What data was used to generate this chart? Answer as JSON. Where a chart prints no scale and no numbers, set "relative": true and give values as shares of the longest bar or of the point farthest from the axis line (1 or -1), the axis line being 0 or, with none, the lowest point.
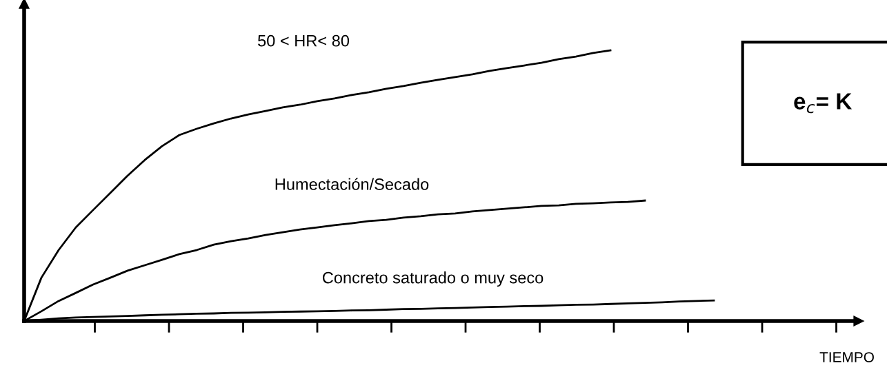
{
  "chart_data": {
    "type": "line",
    "relative": true,
    "categories": [
      null,
      null,
      null,
      null,
      null,
      null,
      null,
      null,
      null,
      null,
      null,
      null,
      null,
      null,
      null,
      null,
      null,
      null,
      null,
      null,
      null,
      null,
      null,
      null,
      null,
      null,
      null,
      null,
      null,
      null,
      null,
      null,
      null,
      null,
      null,
      null,
      null,
      null,
      null,
      null,
      null
    ],
    "series": [
      {
        "name": "50 < HR< 80",
        "color": "#000000",
        "values": [
          0,
          0.16,
          0.262,
          0.346,
          0.41,
          0.473,
          0.537,
          0.595,
          0.646,
          0.687,
          0.71,
          0.73,
          0.748,
          0.763,
          0.776,
          0.789,
          0.799,
          0.812,
          0.822,
          0.835,
          0.845,
          0.858,
          0.868,
          0.88,
          0.891,
          0.901,
          0.911,
          0.924,
          0.934,
          0.944,
          0.954,
          0.967,
          0.977,
          0.99,
          1,
          null,
          null,
          null,
          null,
          null,
          null
        ]
      },
      {
        "name": "Humectación/Secado",
        "color": "#000000",
        "values": [
          0,
          0.036,
          0.074,
          0.104,
          0.135,
          0.16,
          0.186,
          0.206,
          0.226,
          0.247,
          0.262,
          0.282,
          0.295,
          0.305,
          0.318,
          0.328,
          0.338,
          0.346,
          0.354,
          0.361,
          0.369,
          0.374,
          0.382,
          0.387,
          0.394,
          0.397,
          0.405,
          0.41,
          0.415,
          0.42,
          0.425,
          0.427,
          0.433,
          0.435,
          0.438,
          0.44,
          0.445,
          null,
          null,
          null,
          null
        ]
      },
      {
        "name": "Concreto saturado o muy seco",
        "color": "#000000",
        "values": [
          0,
          0.005,
          0.01,
          0.013,
          0.015,
          0.017,
          0.019,
          0.021,
          0.023,
          0.025,
          0.027,
          0.028,
          0.03,
          0.031,
          0.032,
          0.034,
          0.035,
          0.036,
          0.037,
          0.039,
          0.04,
          0.042,
          0.044,
          0.045,
          0.047,
          0.048,
          0.05,
          0.052,
          0.053,
          0.055,
          0.056,
          0.058,
          0.06,
          0.061,
          0.063,
          0.065,
          0.067,
          0.069,
          0.072,
          0.074,
          0.076
        ]
      }
    ],
    "annotations": [
      "e$_{c}$= K",
      "TIEMPO"
    ],
    "grid": false,
    "legend": false,
    "marker": "none",
    "line_style": "solid"
  }
}
